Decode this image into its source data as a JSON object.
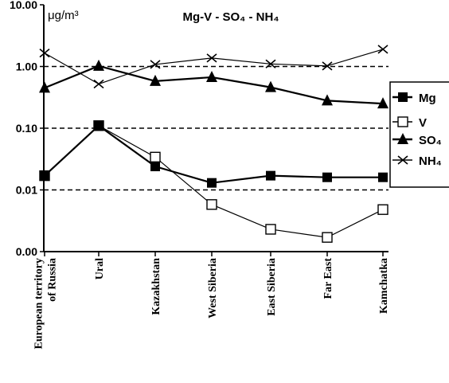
{
  "chart_data": {
    "type": "line",
    "title": "Mg-V - SO₄ - NH₄",
    "unit_label": "μg/m³",
    "y_scale": "log",
    "ylim": [
      0.001,
      10
    ],
    "y_ticks": [
      {
        "value": 10,
        "label": "10.00"
      },
      {
        "value": 1,
        "label": "1.00"
      },
      {
        "value": 0.1,
        "label": "0.10"
      },
      {
        "value": 0.01,
        "label": "0.01"
      },
      {
        "value": 0.001,
        "label": "0.00"
      }
    ],
    "dashed_gridlines": [
      1,
      0.1,
      0.01
    ],
    "legend_position": "right",
    "categories": [
      [
        "European territory",
        "of Russia"
      ],
      [
        "Ural"
      ],
      [
        "Kazakhstan"
      ],
      [
        "West Siberia"
      ],
      [
        "East Siberia"
      ],
      [
        "Far East"
      ],
      [
        "Kamchatka"
      ]
    ],
    "series": [
      {
        "name": "Mg",
        "marker": "filled-square",
        "stroke_width": 2.2,
        "values": [
          0.017,
          0.11,
          0.024,
          0.013,
          0.017,
          0.016,
          0.016
        ]
      },
      {
        "name": "V",
        "marker": "open-square",
        "stroke_width": 1.2,
        "values": [
          0.017,
          0.11,
          0.034,
          0.0058,
          0.0023,
          0.0017,
          0.0048
        ]
      },
      {
        "name": "SO₄",
        "marker": "filled-triangle",
        "stroke_width": 2.2,
        "values": [
          0.45,
          1.02,
          0.58,
          0.67,
          0.46,
          0.28,
          0.25
        ]
      },
      {
        "name": "NH₄",
        "marker": "x",
        "stroke_width": 1.2,
        "values": [
          1.65,
          0.52,
          1.08,
          1.37,
          1.1,
          1.02,
          1.9
        ]
      }
    ]
  }
}
